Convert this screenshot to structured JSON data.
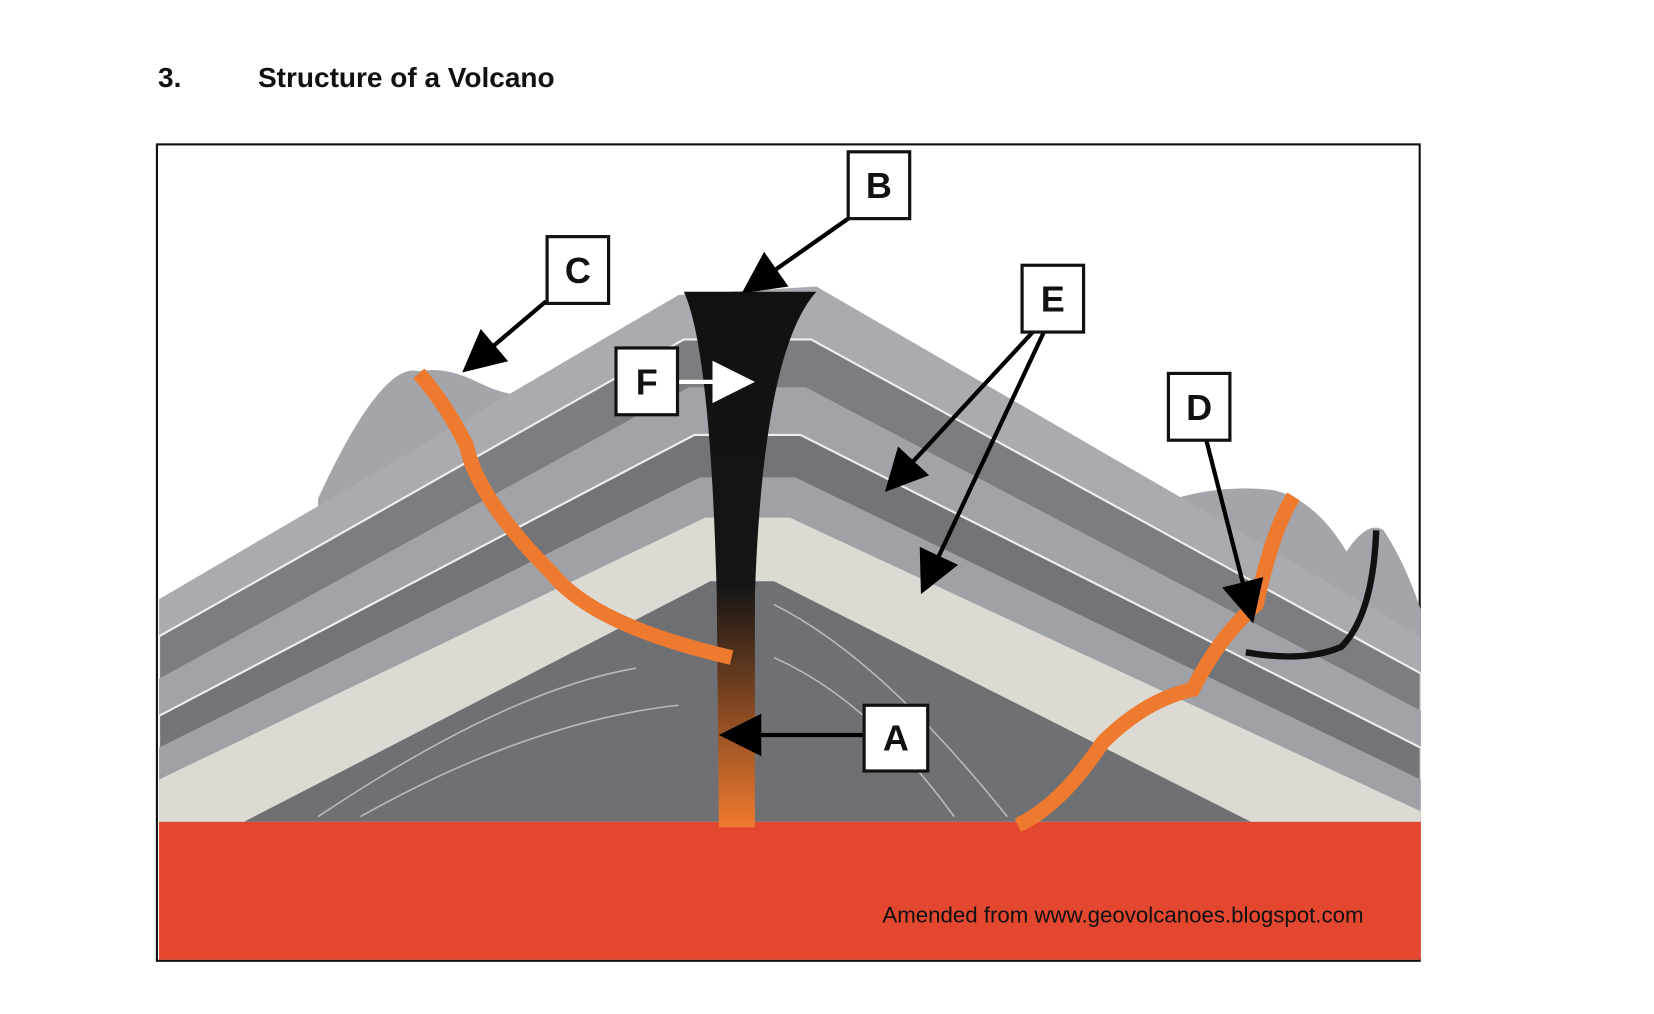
{
  "header": {
    "number": "3.",
    "title": "Structure of a Volcano"
  },
  "diagram": {
    "labels": [
      "A",
      "B",
      "C",
      "D",
      "E",
      "F"
    ],
    "credit": "Amended from www.geovolcanoes.blogspot.com"
  }
}
